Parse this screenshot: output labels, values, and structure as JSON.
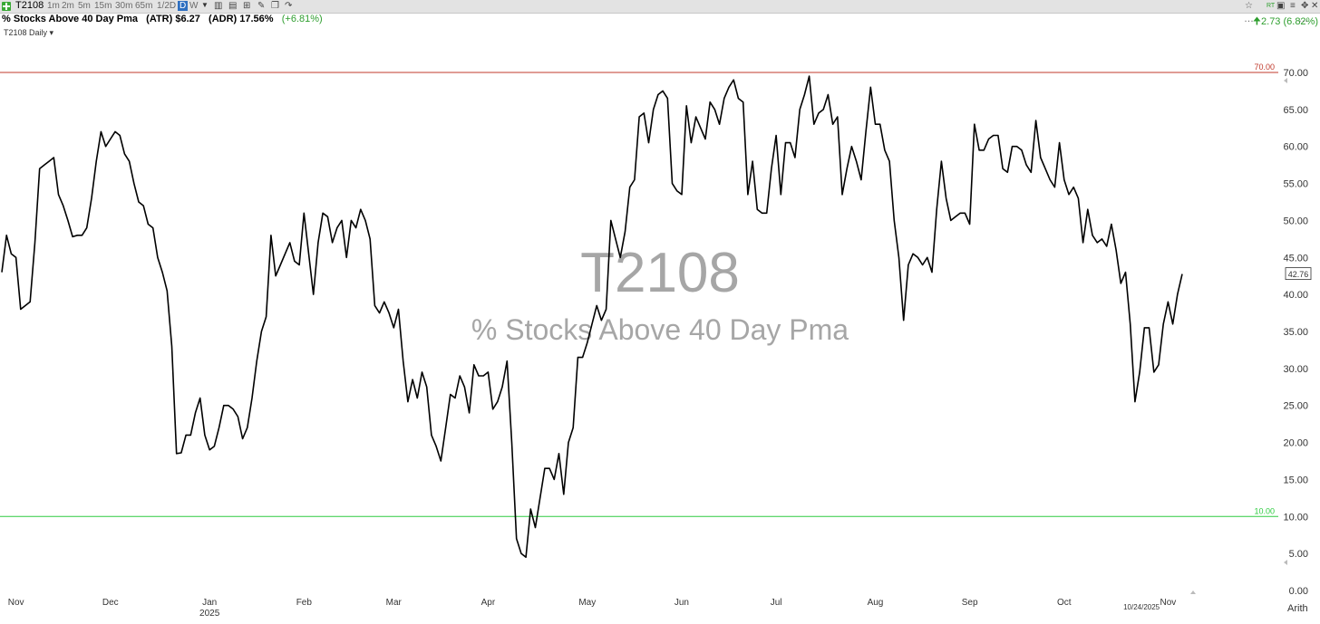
{
  "toolbar": {
    "symbol": "T2108",
    "timeframes": [
      "1m",
      "2m",
      "5m",
      "15m",
      "30m",
      "65m",
      "1/2D"
    ],
    "active_timeframe": "D",
    "week_timeframe": "W",
    "rt_label": "RT"
  },
  "header": {
    "title": "% Stocks Above 40 Day Pma",
    "atr": "(ATR) $6.27",
    "adr": "(ADR) 17.56%",
    "change_pct": "(+6.81%)",
    "right_change": "2.73 (6.82%)",
    "sub_label": "T2108 Daily"
  },
  "watermark": {
    "symbol": "T2108",
    "name": "% Stocks Above 40 Day Pma"
  },
  "colors": {
    "line": "#000000",
    "upper_level": "#c0392b",
    "lower_level": "#2ecc40",
    "watermark": "#a6a6a6",
    "up_green": "#2e9e2e"
  },
  "chart_data": {
    "type": "line",
    "scale": "Arith",
    "ylim": [
      0,
      72
    ],
    "y_ticks": [
      "0.00",
      "5.00",
      "10.00",
      "15.00",
      "20.00",
      "25.00",
      "30.00",
      "35.00",
      "40.00",
      "45.00",
      "50.00",
      "55.00",
      "60.00",
      "65.00",
      "70.00"
    ],
    "x_ticks": [
      {
        "label": "Nov",
        "idx": 3
      },
      {
        "label": "Dec",
        "idx": 23
      },
      {
        "label": "Jan",
        "idx": 44
      },
      {
        "label": "Feb",
        "idx": 64
      },
      {
        "label": "Mar",
        "idx": 83
      },
      {
        "label": "Apr",
        "idx": 103
      },
      {
        "label": "May",
        "idx": 124
      },
      {
        "label": "Jun",
        "idx": 144
      },
      {
        "label": "Jul",
        "idx": 164
      },
      {
        "label": "Aug",
        "idx": 185
      },
      {
        "label": "Sep",
        "idx": 205
      },
      {
        "label": "Oct",
        "idx": 225
      },
      {
        "label": "Nov",
        "idx": 247
      }
    ],
    "year_label": {
      "label": "2025",
      "idx": 44
    },
    "last_date": {
      "label": "10/24/2025",
      "idx": 241
    },
    "last_value": "42.76",
    "levels": [
      {
        "label": "70.00",
        "value": 70
      },
      {
        "label": "10.00",
        "value": 10
      }
    ],
    "series": [
      {
        "values": [
          43,
          48,
          45.5,
          45,
          38,
          38.5,
          39,
          47,
          57,
          57.5,
          58,
          58.5,
          53.5,
          52,
          50,
          47.8,
          48,
          48,
          49,
          53,
          58,
          62,
          60,
          61,
          62,
          61.5,
          59,
          58,
          55,
          52.5,
          52,
          49.5,
          49,
          45,
          43,
          40.5,
          33,
          18.5,
          18.6,
          21,
          21,
          24,
          26,
          21,
          19,
          19.5,
          22,
          25,
          25,
          24.5,
          23.5,
          20.5,
          22,
          26,
          31,
          35,
          37,
          48,
          42.5,
          44,
          45.5,
          47,
          44.5,
          44,
          51,
          45.5,
          40,
          47,
          51,
          50.5,
          47,
          49,
          50,
          45,
          50,
          49,
          51.5,
          50,
          47.5,
          38.5,
          37.5,
          39,
          37.5,
          35.5,
          38,
          31,
          25.5,
          28.5,
          26,
          29.5,
          27.5,
          21,
          19.5,
          17.5,
          22,
          26.5,
          26,
          29,
          27.5,
          24,
          30.5,
          29,
          29,
          29.5,
          24.5,
          25.5,
          27.5,
          31,
          20,
          7,
          5,
          4.5,
          11,
          8.5,
          12.5,
          16.5,
          16.5,
          15,
          18.5,
          13,
          20,
          22,
          31.5,
          31.5,
          33.5,
          36,
          38.5,
          36.5,
          38,
          50,
          47.5,
          45,
          48.5,
          54.5,
          55.5,
          64,
          64.5,
          60.5,
          65,
          67,
          67.5,
          66.5,
          55,
          54,
          53.5,
          65.5,
          60.5,
          64,
          62.5,
          61,
          66,
          65,
          63,
          66.5,
          68,
          69,
          66.5,
          66,
          53.5,
          58,
          51.5,
          51,
          51,
          57,
          61.5,
          53.5,
          60.5,
          60.5,
          58.5,
          65,
          67,
          69.5,
          63,
          64.5,
          65,
          67,
          63,
          64,
          53.5,
          57,
          60,
          58,
          55.5,
          62,
          68,
          63,
          63,
          59.5,
          58,
          50,
          45,
          36.5,
          44,
          45.5,
          45,
          44,
          45,
          43,
          51.5,
          58,
          53,
          50,
          50.5,
          51,
          51,
          49.5,
          63,
          59.5,
          59.5,
          61,
          61.5,
          61.5,
          57,
          56.5,
          60,
          60,
          59.5,
          57.5,
          56.5,
          63.5,
          58.5,
          57,
          55.5,
          54.5,
          60.5,
          55.5,
          53.5,
          54.5,
          53,
          47,
          51.5,
          48,
          47,
          47.5,
          46.5,
          49.5,
          46,
          41.5,
          43,
          36,
          25.5,
          29.5,
          35.5,
          35.5,
          29.5,
          30.5,
          36,
          39,
          36,
          40,
          42.76
        ]
      }
    ]
  }
}
